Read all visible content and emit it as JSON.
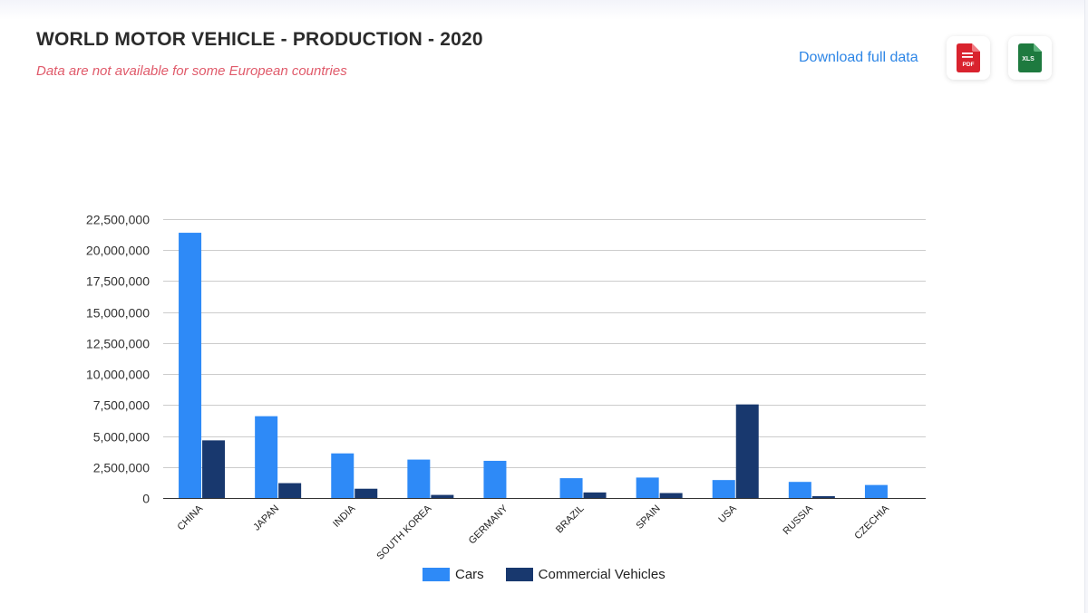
{
  "header": {
    "title": "WORLD MOTOR VEHICLE - PRODUCTION - 2020",
    "subtitle": "Data are not available for some European countries",
    "download_label": "Download full data",
    "pdf_label": "PDF",
    "xls_label": "XLS"
  },
  "colors": {
    "cars": "#2e8af7",
    "commercial": "#18386e",
    "pdf": "#d9232e",
    "xls": "#1e7a3f"
  },
  "icons": {
    "pdf": "pdf-file-icon",
    "xls": "xls-file-icon"
  },
  "chart_data": {
    "type": "bar",
    "categories": [
      "CHINA",
      "JAPAN",
      "INDIA",
      "SOUTH KOREA",
      "GERMANY",
      "BRAZIL",
      "SPAIN",
      "USA",
      "RUSSIA",
      "CZECHIA"
    ],
    "series": [
      {
        "name": "Cars",
        "values": [
          21400000,
          6600000,
          3600000,
          3100000,
          3000000,
          1600000,
          1650000,
          1450000,
          1300000,
          1050000
        ]
      },
      {
        "name": "Commercial Vehicles",
        "values": [
          4650000,
          1200000,
          750000,
          250000,
          0,
          450000,
          400000,
          7550000,
          150000,
          0
        ]
      }
    ],
    "ylim": [
      0,
      22500000
    ],
    "yticks": [
      0,
      2500000,
      5000000,
      7500000,
      10000000,
      12500000,
      15000000,
      17500000,
      20000000,
      22500000
    ],
    "ytick_labels": [
      "0",
      "2,500,000",
      "5,000,000",
      "7,500,000",
      "10,000,000",
      "12,500,000",
      "15,000,000",
      "17,500,000",
      "20,000,000",
      "22,500,000"
    ],
    "grid": true,
    "legend_position": "bottom",
    "xlabel": "",
    "ylabel": ""
  }
}
